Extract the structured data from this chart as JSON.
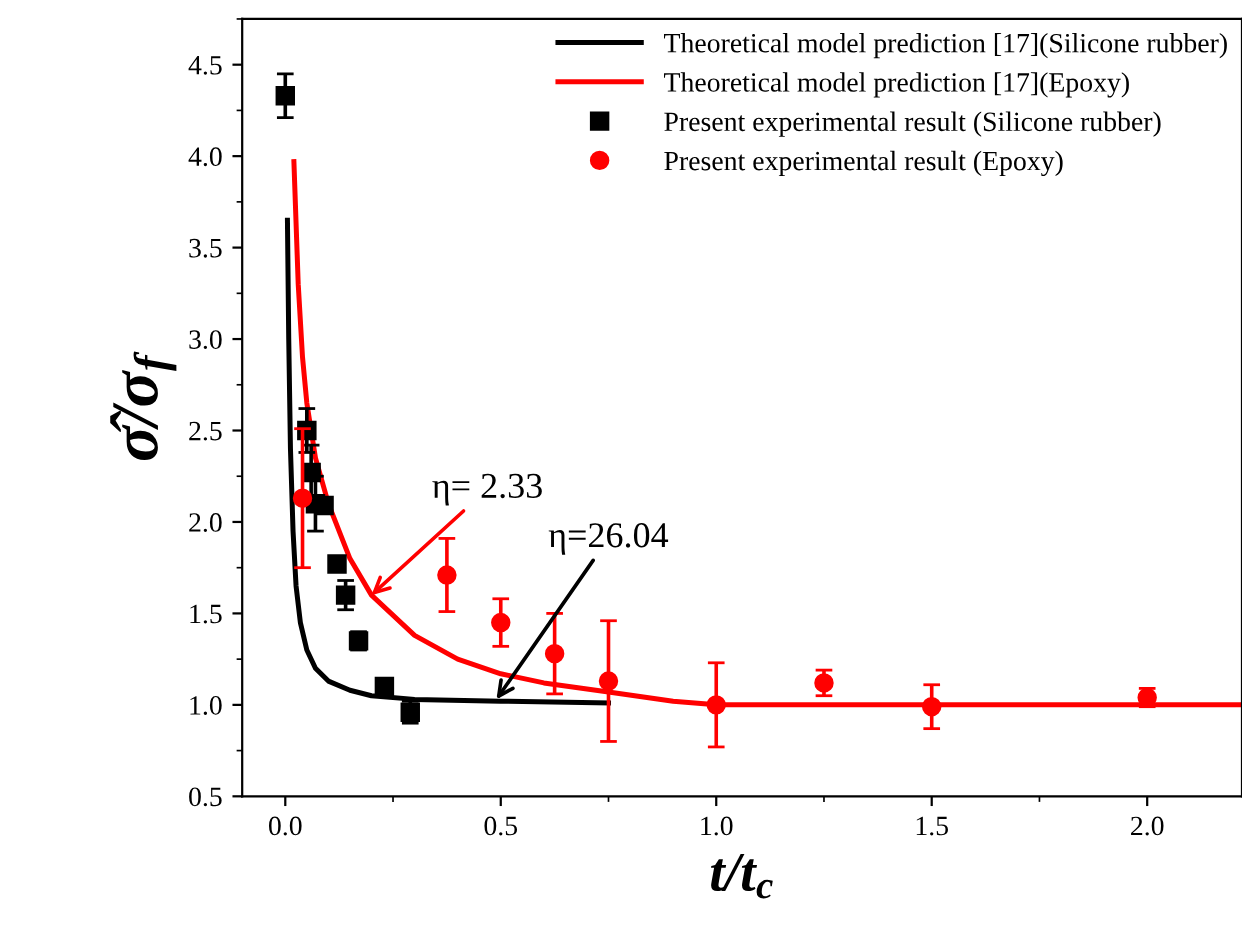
{
  "chart_data": {
    "type": "line",
    "xlabel": "t/t$_{c}$",
    "ylabel": "σ̂/σ$_{f}$",
    "xlim": [
      -0.1,
      2.22
    ],
    "ylim": [
      0.5,
      4.75
    ],
    "xticks": [
      {
        "value": 0,
        "label": "0.0"
      },
      0.5,
      {
        "value": 1,
        "label": "1.0"
      },
      1.5,
      {
        "value": 2,
        "label": "2.0"
      }
    ],
    "yticks": [
      0.5,
      {
        "value": 1,
        "label": "1.0"
      },
      1.5,
      {
        "value": 2,
        "label": "2.0"
      },
      2.5,
      {
        "value": 3,
        "label": "3.0"
      },
      3.5,
      {
        "value": 4,
        "label": "4.0"
      },
      4.5
    ],
    "legend": "top right",
    "grid": false,
    "series": [
      {
        "name": "Theoretical model prediction [17](Silicone rubber)",
        "color": "#000000",
        "x": [
          0.005,
          0.008,
          0.012,
          0.018,
          0.025,
          0.035,
          0.05,
          0.07,
          0.1,
          0.15,
          0.2,
          0.3,
          0.5,
          0.75
        ],
        "values": [
          3.65,
          3.0,
          2.4,
          1.95,
          1.65,
          1.45,
          1.3,
          1.2,
          1.13,
          1.08,
          1.05,
          1.03,
          1.02,
          1.01
        ]
      },
      {
        "name": "Theoretical model prediction [17](Epoxy)",
        "color": "#ff0000",
        "x": [
          0.02,
          0.03,
          0.04,
          0.05,
          0.07,
          0.1,
          0.15,
          0.2,
          0.3,
          0.4,
          0.5,
          0.6,
          0.75,
          0.9,
          1.0,
          1.5,
          2.22
        ],
        "values": [
          3.97,
          3.3,
          2.9,
          2.65,
          2.35,
          2.1,
          1.8,
          1.6,
          1.38,
          1.25,
          1.17,
          1.12,
          1.07,
          1.02,
          1.0,
          1.0,
          1.0
        ]
      },
      {
        "name": "Present experimental result (Silicone rubber)",
        "type": "scatter",
        "marker": "square",
        "color": "#000000",
        "x": [
          0.0,
          0.05,
          0.06,
          0.07,
          0.09,
          0.12,
          0.14,
          0.17,
          0.23,
          0.29
        ],
        "values": [
          4.33,
          2.5,
          2.27,
          2.1,
          2.09,
          1.77,
          1.6,
          1.35,
          1.1,
          0.96
        ],
        "errors": [
          0.12,
          0.12,
          0.15,
          0.15,
          null,
          null,
          0.08,
          0.05,
          null,
          0.06
        ]
      },
      {
        "name": "Present experimental result (Epoxy)",
        "type": "scatter",
        "marker": "circle",
        "color": "#ff0000",
        "x": [
          0.04,
          0.375,
          0.5,
          0.625,
          0.75,
          1.0,
          1.25,
          1.5,
          2.0
        ],
        "values": [
          2.13,
          1.71,
          1.45,
          1.28,
          1.13,
          1.0,
          1.12,
          0.99,
          1.04
        ],
        "errors": [
          0.38,
          0.2,
          0.13,
          0.22,
          0.33,
          0.23,
          0.07,
          0.12,
          0.05
        ]
      }
    ],
    "annotations": [
      {
        "text": "η= 2.33",
        "x": 0.2,
        "y": 1.6
      },
      {
        "text": "η=26.04",
        "x": 0.49,
        "y": 1.03
      }
    ]
  }
}
